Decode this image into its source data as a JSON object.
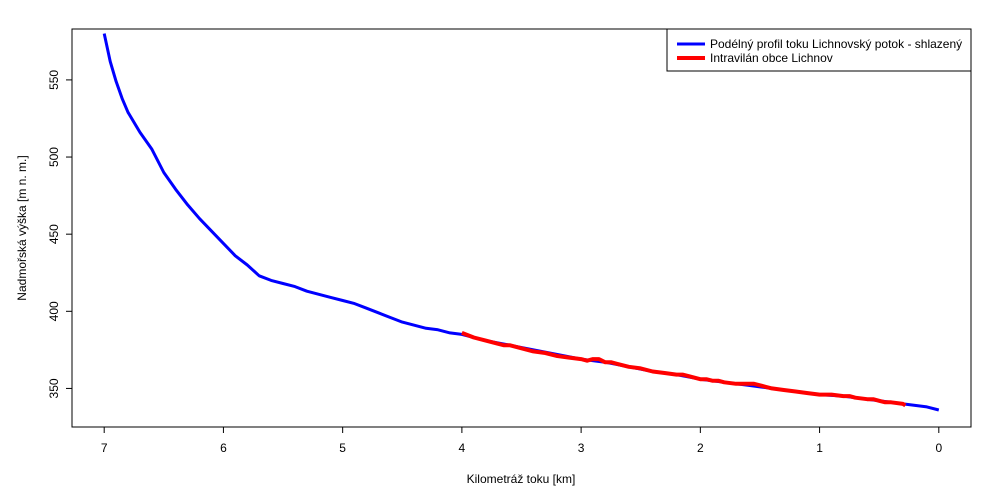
{
  "chart_data": {
    "type": "line",
    "title": "",
    "xlabel": "Kilometráž toku [km]",
    "ylabel": "Nadmořská výška [m n. m.]",
    "xlim": [
      7.27,
      -0.27
    ],
    "ylim": [
      325,
      583
    ],
    "x_ticks": [
      7,
      6,
      5,
      4,
      3,
      2,
      1,
      0
    ],
    "y_ticks": [
      350,
      400,
      450,
      500,
      550
    ],
    "grid": false,
    "legend_position": "top-right",
    "series": [
      {
        "name": "Podélný profil toku Lichnovský potok - shlazený",
        "color": "#0000ff",
        "x": [
          7.0,
          6.95,
          6.9,
          6.85,
          6.8,
          6.7,
          6.6,
          6.5,
          6.4,
          6.3,
          6.2,
          6.1,
          6.0,
          5.9,
          5.8,
          5.7,
          5.6,
          5.5,
          5.4,
          5.3,
          5.2,
          5.1,
          5.0,
          4.9,
          4.8,
          4.7,
          4.6,
          4.5,
          4.4,
          4.3,
          4.2,
          4.1,
          4.0,
          3.8,
          3.6,
          3.4,
          3.2,
          3.0,
          2.8,
          2.6,
          2.4,
          2.2,
          2.0,
          1.8,
          1.6,
          1.5,
          1.4,
          1.2,
          1.0,
          0.8,
          0.6,
          0.4,
          0.3,
          0.2,
          0.1,
          0.0
        ],
        "y": [
          580,
          562,
          549,
          538,
          529,
          516,
          505,
          490,
          479,
          469,
          460,
          452,
          444,
          436,
          430,
          423,
          420,
          418,
          416,
          413,
          411,
          409,
          407,
          405,
          402,
          399,
          396,
          393,
          391,
          389,
          388,
          386,
          385,
          381,
          378,
          375,
          372,
          369,
          367,
          364,
          361,
          359,
          356,
          354,
          352,
          351,
          350,
          348,
          346,
          345,
          343,
          341,
          340,
          339,
          338,
          336
        ]
      },
      {
        "name": "Intravilán obce Lichnov",
        "color": "#ff0000",
        "x": [
          4.0,
          3.9,
          3.8,
          3.7,
          3.65,
          3.6,
          3.5,
          3.4,
          3.3,
          3.2,
          3.1,
          3.0,
          2.95,
          2.9,
          2.85,
          2.8,
          2.75,
          2.7,
          2.6,
          2.5,
          2.4,
          2.3,
          2.2,
          2.15,
          2.1,
          2.0,
          1.95,
          1.9,
          1.85,
          1.8,
          1.7,
          1.6,
          1.55,
          1.5,
          1.45,
          1.4,
          1.3,
          1.2,
          1.1,
          1.0,
          0.9,
          0.8,
          0.75,
          0.7,
          0.6,
          0.55,
          0.5,
          0.45,
          0.4,
          0.3,
          0.28
        ],
        "y": [
          386,
          383,
          381,
          379,
          378,
          378,
          376,
          374,
          373,
          371,
          370,
          369,
          368,
          369,
          369,
          367,
          367,
          366,
          364,
          363,
          361,
          360,
          359,
          359,
          358,
          356,
          356,
          355,
          355,
          354,
          353,
          353,
          353,
          352,
          351,
          350,
          349,
          348,
          347,
          346,
          346,
          345,
          345,
          344,
          343,
          343,
          342,
          341,
          341,
          340,
          339
        ]
      }
    ]
  }
}
